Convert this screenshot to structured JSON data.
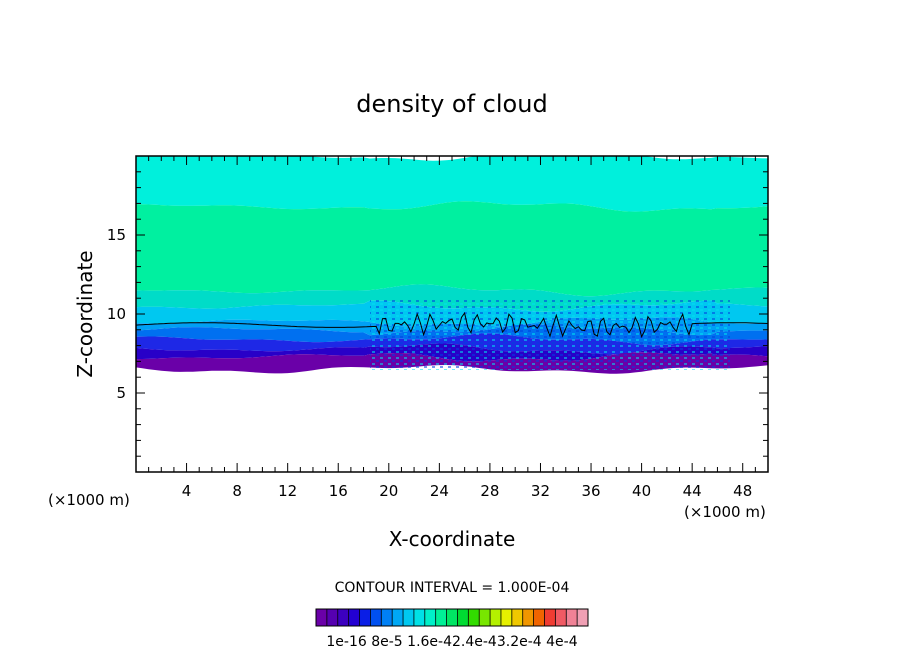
{
  "chart_data": {
    "type": "heatmap",
    "title": "density of cloud",
    "xlabel": "X-coordinate",
    "ylabel": "Z-coordinate",
    "x_unit_left": "(×1000 m)",
    "x_unit_right": "(×1000 m)",
    "xlim": [
      0,
      50
    ],
    "ylim": [
      0,
      20
    ],
    "x_ticks": [
      "4",
      "8",
      "12",
      "16",
      "20",
      "24",
      "28",
      "32",
      "36",
      "40",
      "44",
      "48"
    ],
    "y_ticks": [
      "5",
      "10",
      "15"
    ],
    "contour_interval_label": "CONTOUR INTERVAL = 1.000E-04",
    "colorbar_labels": [
      "1e-16",
      "8e-5",
      "1.6e-4",
      "2.4e-4",
      "3.2e-4",
      "4e-4"
    ],
    "colorbar_label_text": "1e-16 8e-5 1.6e-42.4e-43.2e-4 4e-4",
    "colorbar_colors": [
      "#6a00a8",
      "#5500b0",
      "#3c00c0",
      "#2300d2",
      "#0a1ee6",
      "#0050f0",
      "#0080f5",
      "#00a8f5",
      "#00c8f0",
      "#00e1e6",
      "#00f0c8",
      "#00f096",
      "#00e664",
      "#00dc32",
      "#32dc00",
      "#78e600",
      "#b4f000",
      "#e6f000",
      "#f0c800",
      "#f09600",
      "#f06400",
      "#f03c32",
      "#f05a64",
      "#f08296",
      "#f0a0b4"
    ],
    "layers": [
      {
        "z_bottom": 16.8,
        "z_top": 20,
        "color": "#00f0dc"
      },
      {
        "z_bottom": 11.5,
        "z_top": 16.8,
        "color": "#00f0a0"
      },
      {
        "z_bottom": 10.5,
        "z_top": 11.5,
        "color": "#00dcc8"
      },
      {
        "z_bottom": 9.5,
        "z_top": 10.5,
        "color": "#00c8f0"
      },
      {
        "z_bottom": 9.0,
        "z_top": 9.5,
        "color": "#00a0f5"
      },
      {
        "z_bottom": 8.4,
        "z_top": 9.0,
        "color": "#0070f0"
      },
      {
        "z_bottom": 7.8,
        "z_top": 8.4,
        "color": "#1e28e6"
      },
      {
        "z_bottom": 7.3,
        "z_top": 7.8,
        "color": "#2800c8"
      },
      {
        "z_bottom": 6.6,
        "z_top": 7.3,
        "color": "#6a00a8"
      }
    ],
    "contour_level_z": 9.3,
    "cloud_base_km": 6.5,
    "grid": false
  }
}
